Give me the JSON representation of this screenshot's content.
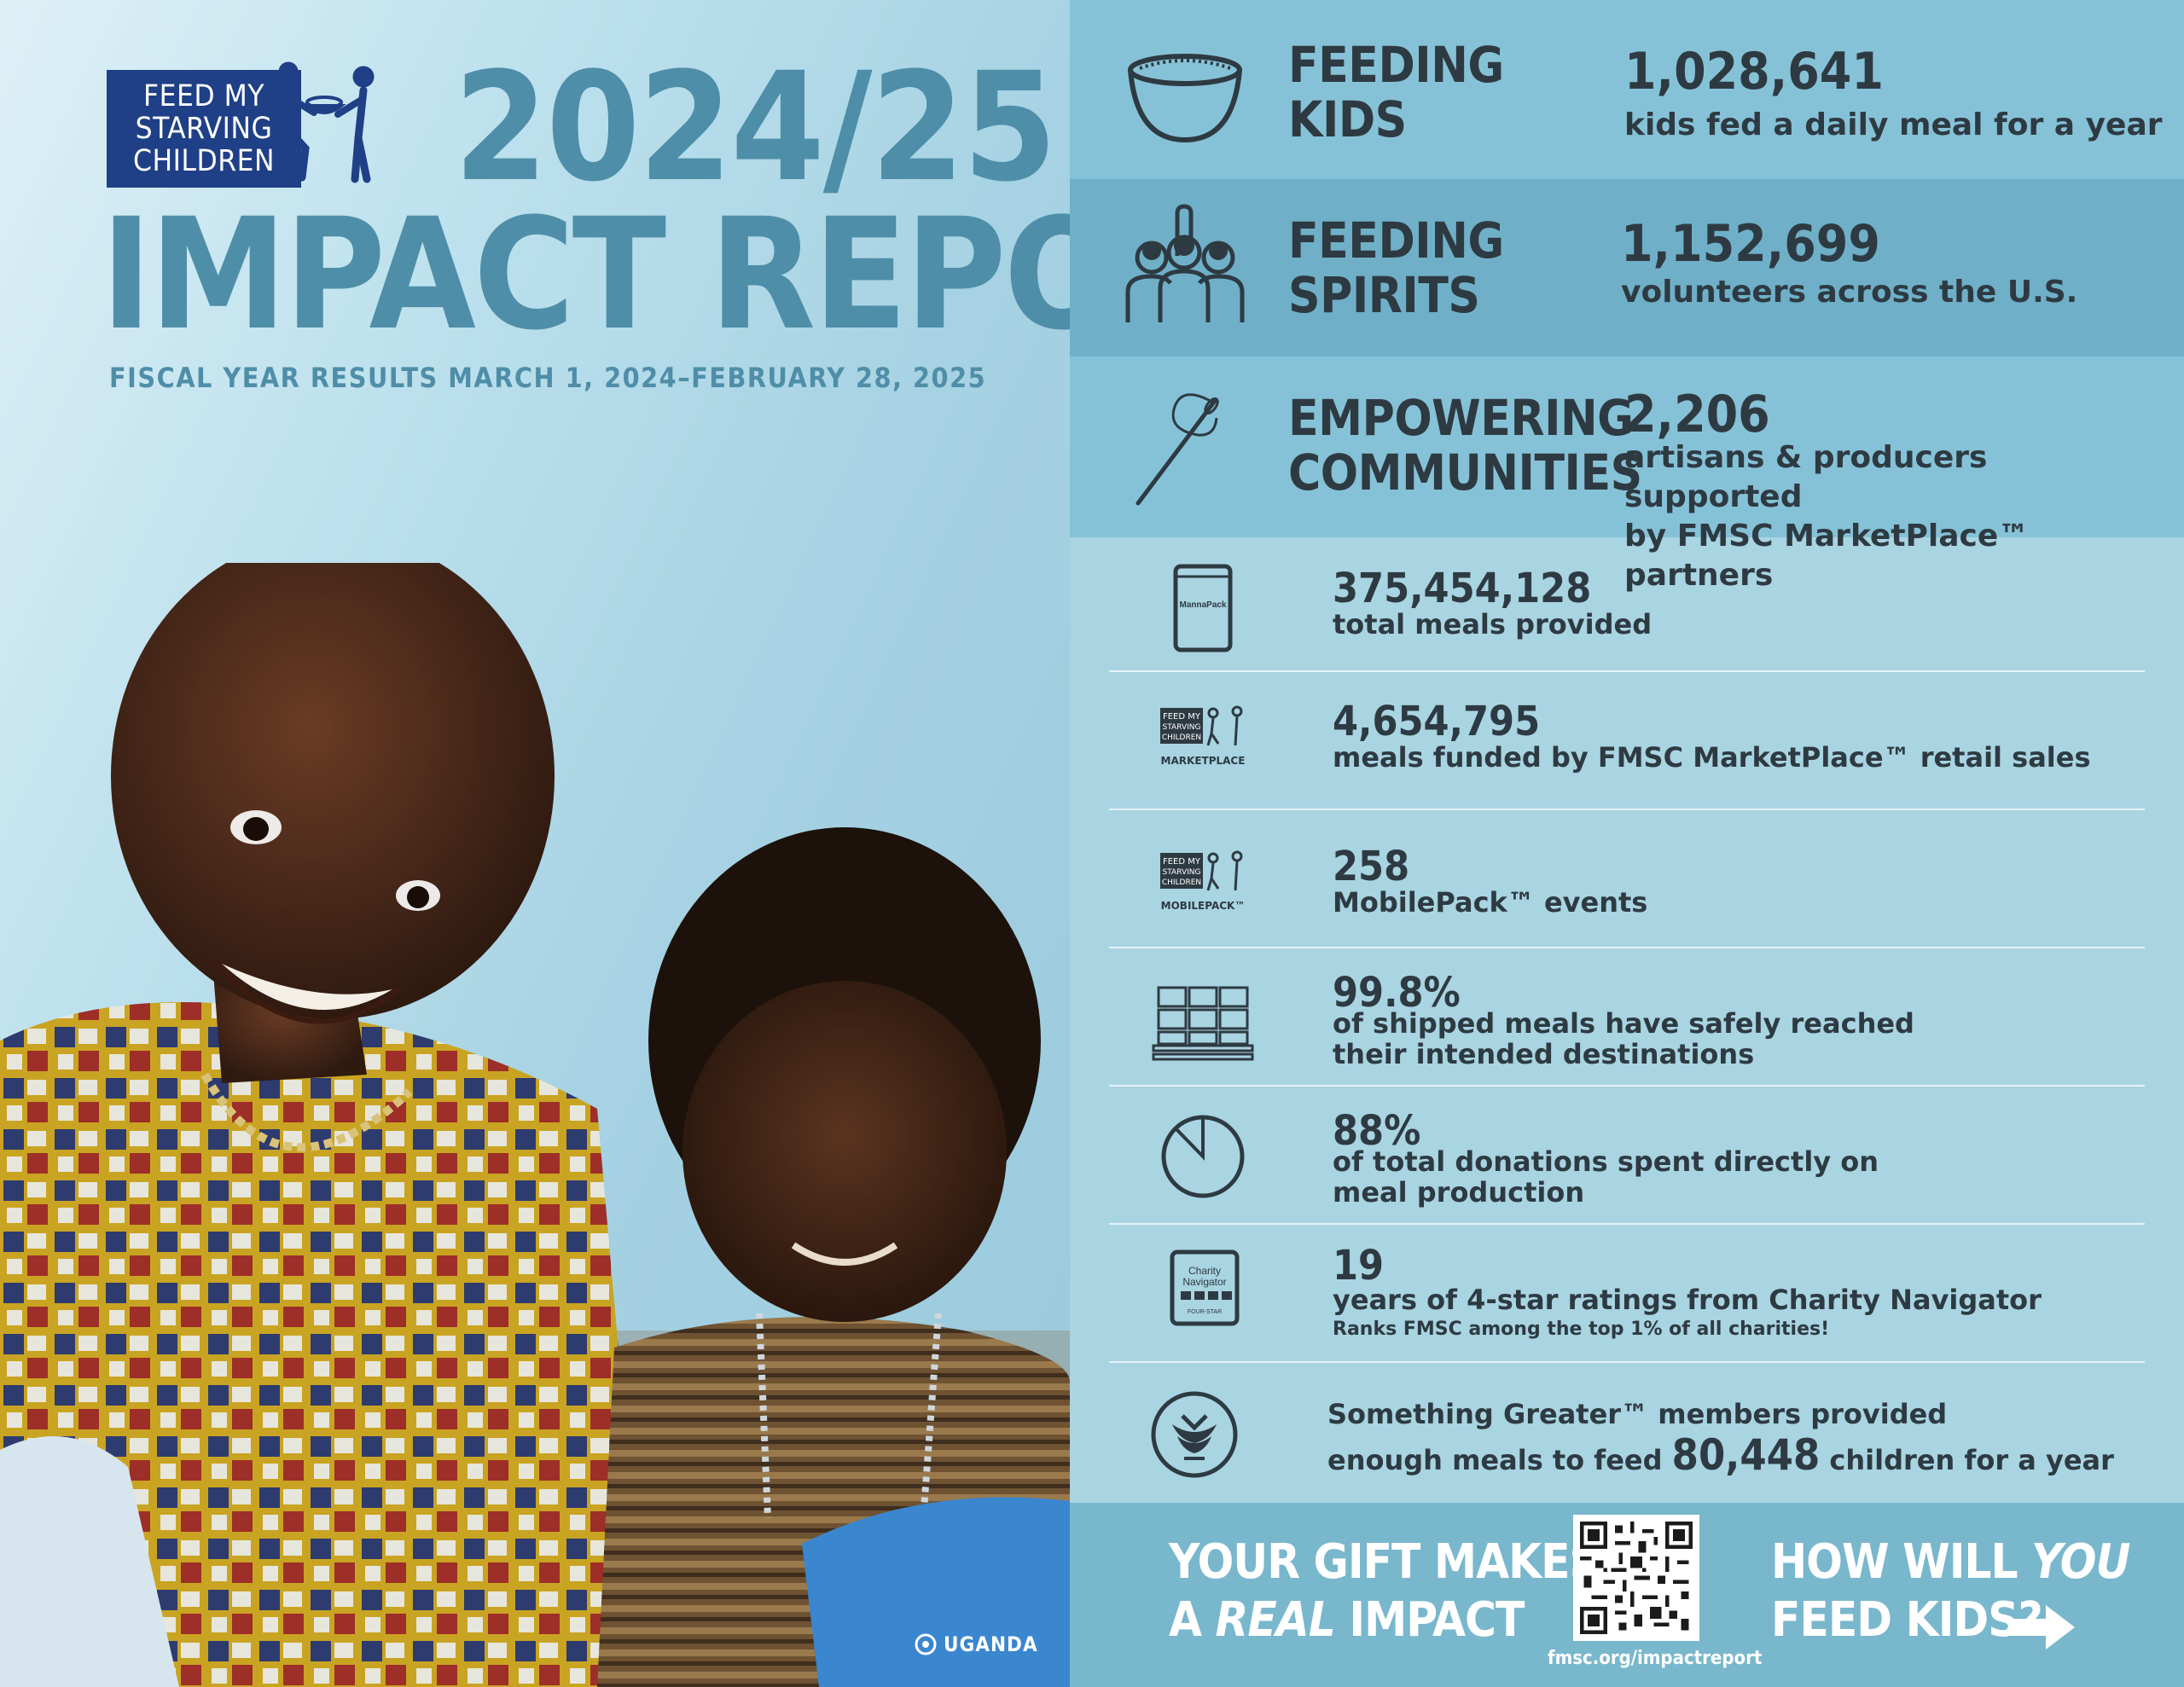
{
  "header": {
    "logo_lines": [
      "FEED MY",
      "STARVING",
      "CHILDREN"
    ],
    "year": "2024/25",
    "title": "IMPACT REPORT",
    "fiscal": "FISCAL YEAR RESULTS MARCH 1, 2024–FEBRUARY 28, 2025"
  },
  "photo": {
    "location": "UGANDA"
  },
  "bands": [
    {
      "label_lines": [
        "FEEDING",
        "KIDS"
      ],
      "number": "1,028,641",
      "desc": "kids fed a daily meal for a year",
      "icon": "bowl-icon"
    },
    {
      "label_lines": [
        "FEEDING",
        "SPIRITS"
      ],
      "number": "1,152,699",
      "desc": "volunteers across the U.S.",
      "icon": "volunteers-icon"
    },
    {
      "label_lines": [
        "EMPOWERING",
        "COMMUNITIES"
      ],
      "number": "2,206",
      "desc_lines": [
        "artisans & producers supported",
        "by FMSC MarketPlace™ partners"
      ],
      "icon": "needle-thread-icon"
    }
  ],
  "stats": [
    {
      "number": "375,454,128",
      "desc": "total meals provided",
      "icon": "mannapack-bag-icon",
      "icon_text": "MannaPack"
    },
    {
      "number": "4,654,795",
      "desc": "meals funded by FMSC MarketPlace™ retail sales",
      "icon": "marketplace-logo-icon",
      "icon_lines": [
        "FEED MY",
        "STARVING",
        "CHILDREN"
      ],
      "icon_caption": "MARKETPLACE"
    },
    {
      "number": "258",
      "desc": "MobilePack™ events",
      "icon": "mobilepack-logo-icon",
      "icon_lines": [
        "FEED MY",
        "STARVING",
        "CHILDREN"
      ],
      "icon_caption": "MOBILEPACK™"
    },
    {
      "number": "99.8%",
      "desc_lines": [
        "of shipped meals have safely reached",
        "their intended destinations"
      ],
      "icon": "pallet-boxes-icon"
    },
    {
      "number": "88%",
      "desc_lines": [
        "of total donations spent directly on",
        "meal production"
      ],
      "icon": "pie-slice-icon"
    },
    {
      "number": "19",
      "desc": "years of 4-star ratings from Charity Navigator",
      "note": "Ranks FMSC among the top 1% of all charities!",
      "icon": "charity-navigator-badge-icon",
      "icon_lines": [
        "Charity",
        "Navigator"
      ],
      "icon_caption": "FOUR-STAR"
    }
  ],
  "something_greater": {
    "line1": "Something Greater™ members provided",
    "line2_pre": "enough meals to feed",
    "number": "80,448",
    "line2_post": "children for a year",
    "icon": "something-greater-icon"
  },
  "footer": {
    "cta_left_line1": "YOUR GIFT MAKES",
    "cta_left_line2_pre": "A",
    "cta_left_line2_em": "REAL",
    "cta_left_line2_post": "IMPACT",
    "qr_url": "fmsc.org/impactreport",
    "cta_right_line1_pre": "HOW WILL",
    "cta_right_line1_em": "YOU",
    "cta_right_line2": "FEED KIDS?",
    "icon": "right-arrow-icon"
  },
  "colors": {
    "title_blue": "#4f8ea8",
    "logo_navy": "#1f3f86",
    "band_light": "#86c2d7",
    "band_dark": "#6fb0c8",
    "panel": "#a9d4e2",
    "footer": "#79b7cd",
    "text_dark": "#2e3a42"
  }
}
